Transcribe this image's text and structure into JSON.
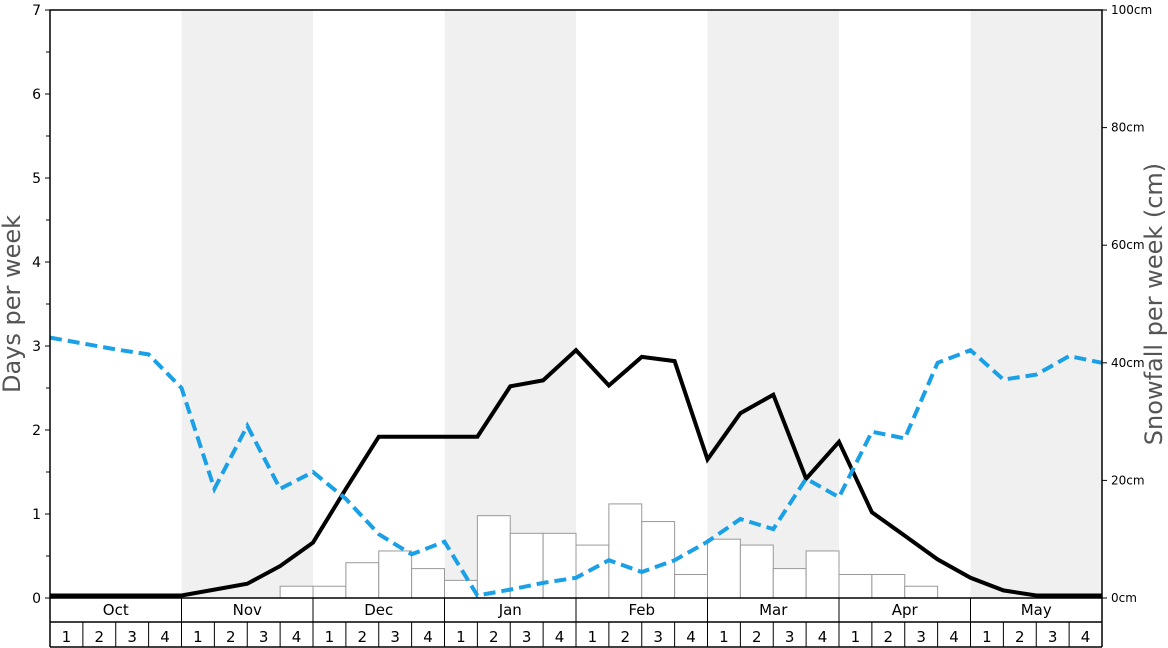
{
  "chart_data": {
    "type": "bar",
    "title": "",
    "ylabel": "Days per week",
    "y2label": "Snowfall per week (cm)",
    "ylim": [
      0,
      7
    ],
    "y_ticks": [
      "0",
      "1",
      "2",
      "3",
      "4",
      "5",
      "6",
      "7"
    ],
    "y2lim": [
      0,
      100
    ],
    "y2_ticks": [
      "0cm",
      "20cm",
      "40cm",
      "60cm",
      "80cm",
      "100cm"
    ],
    "months": [
      "Oct",
      "Nov",
      "Dec",
      "Jan",
      "Feb",
      "Mar",
      "Apr",
      "May"
    ],
    "weeks": [
      "1",
      "2",
      "3",
      "4"
    ],
    "shaded_months": [
      "Nov",
      "Jan",
      "Mar",
      "May"
    ],
    "shade_color": "#f0f0f0",
    "series": [
      {
        "type": "bar",
        "axis": "right",
        "color": "#ffffff",
        "stroke": "#999999",
        "values": [
          0,
          0,
          0,
          0,
          0,
          0,
          0,
          2,
          2,
          6,
          8,
          5,
          3,
          14,
          11,
          11,
          9,
          16,
          13,
          4,
          10,
          9,
          5,
          8,
          4,
          4,
          2,
          0,
          0,
          0,
          0,
          0
        ]
      },
      {
        "type": "line",
        "axis": "left",
        "color": "#000000",
        "style": "solid",
        "values": [
          0.03,
          0.03,
          0.03,
          0.03,
          0.03,
          0.1,
          0.17,
          0.38,
          0.66,
          1.3,
          1.92,
          1.92,
          1.92,
          1.92,
          2.52,
          2.59,
          2.95,
          2.53,
          2.87,
          2.82,
          1.65,
          2.2,
          2.42,
          1.42,
          1.86,
          1.02,
          0.74,
          0.46,
          0.24,
          0.09,
          0.03,
          0.03,
          0.03
        ]
      },
      {
        "type": "line",
        "axis": "left",
        "color": "#1aa0e6",
        "style": "dashed",
        "values": [
          3.1,
          3.03,
          2.96,
          2.9,
          2.5,
          1.3,
          2.05,
          1.3,
          1.5,
          1.18,
          0.76,
          0.52,
          0.67,
          0.03,
          0.1,
          0.18,
          0.24,
          0.45,
          0.31,
          0.45,
          0.67,
          0.94,
          0.82,
          1.42,
          1.2,
          1.98,
          1.9,
          2.8,
          2.95,
          2.6,
          2.66,
          2.88,
          2.8
        ]
      }
    ]
  }
}
